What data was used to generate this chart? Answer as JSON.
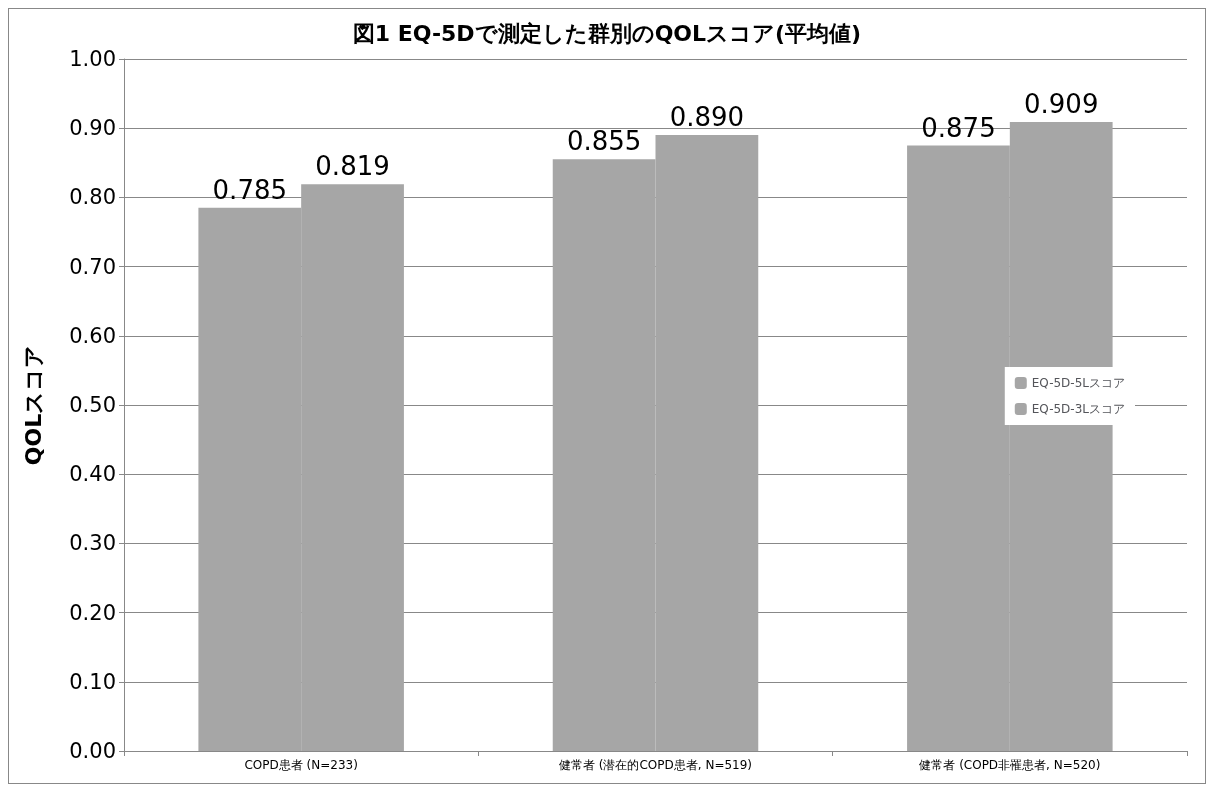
{
  "chart_data": {
    "type": "bar",
    "title": "図1 EQ-5Dで測定した群別のQOLスコア(平均値)",
    "ylabel": "QOLスコア",
    "categories": [
      "COPD患者 (N=233)",
      "健常者 (潜在的COPD患者, N=519)",
      "健常者 (COPD非罹患者, N=520)"
    ],
    "series": [
      {
        "name": "EQ-5D-5Lスコア",
        "color": "#a6a6a6",
        "values": [
          0.785,
          0.855,
          0.875
        ],
        "value_labels": [
          "0.785",
          "0.855",
          "0.875"
        ]
      },
      {
        "name": "EQ-5D-3Lスコア",
        "color": "#a6a6a6",
        "values": [
          0.819,
          0.89,
          0.909
        ],
        "value_labels": [
          "0.819",
          "0.890",
          "0.909"
        ]
      }
    ],
    "ylim": [
      0,
      1
    ],
    "yticks": [
      {
        "value": 0,
        "label": "0.00"
      },
      {
        "value": 0.1,
        "label": "0.10"
      },
      {
        "value": 0.2,
        "label": "0.20"
      },
      {
        "value": 0.3,
        "label": "0.30"
      },
      {
        "value": 0.4,
        "label": "0.40"
      },
      {
        "value": 0.5,
        "label": "0.50"
      },
      {
        "value": 0.6,
        "label": "0.60"
      },
      {
        "value": 0.7,
        "label": "0.70"
      },
      {
        "value": 0.8,
        "label": "0.80"
      },
      {
        "value": 0.9,
        "label": "0.90"
      },
      {
        "value": 1,
        "label": "1.00"
      }
    ],
    "grid": "y",
    "legend": "right"
  }
}
